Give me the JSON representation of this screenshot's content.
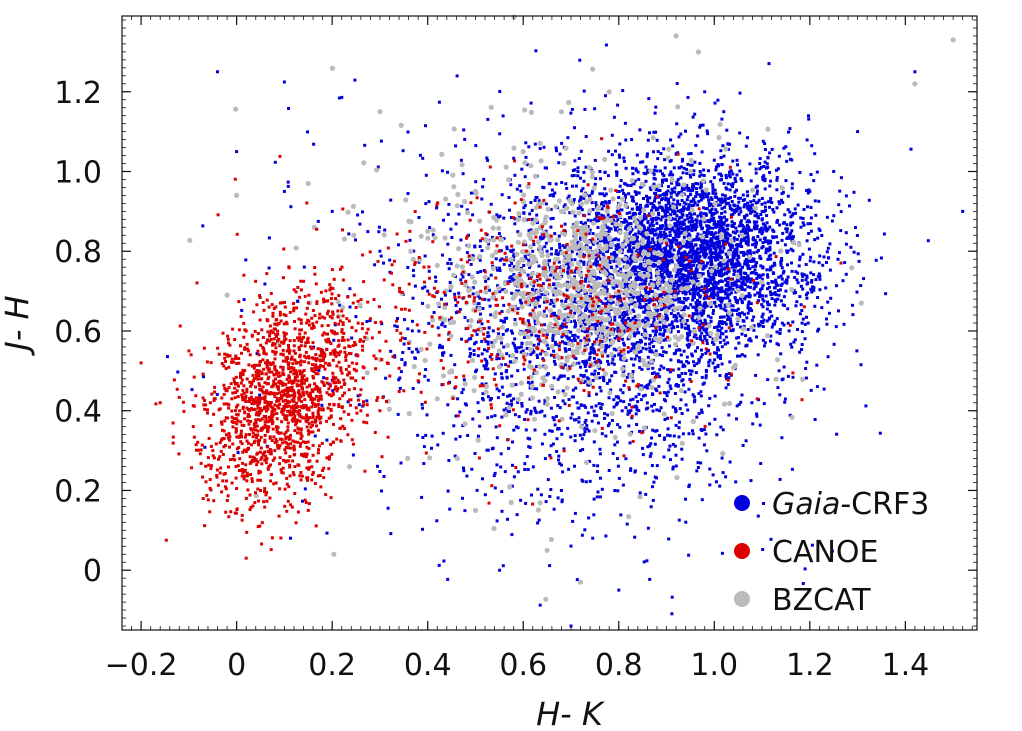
{
  "chart_data": {
    "type": "scatter",
    "title": "",
    "xlabel": "H- K",
    "ylabel": "J- H",
    "xlim": [
      -0.24,
      1.55
    ],
    "ylim": [
      -0.15,
      1.39
    ],
    "x_ticks": [
      -0.2,
      0,
      0.2,
      0.4,
      0.6,
      0.8,
      1.0,
      1.2,
      1.4
    ],
    "x_tick_labels": [
      "−0.2",
      "0",
      "0.2",
      "0.4",
      "0.6",
      "0.8",
      "1.0",
      "1.2",
      "1.4"
    ],
    "y_ticks": [
      0,
      0.2,
      0.4,
      0.6,
      0.8,
      1.0,
      1.2
    ],
    "y_tick_labels": [
      "0",
      "0.2",
      "0.4",
      "0.6",
      "0.8",
      "1.0",
      "1.2"
    ],
    "legend_position": "bottom-right",
    "grid": false,
    "series": [
      {
        "name": "Gaia-CRF3",
        "name_italic": "Gaia",
        "name_rest": "-CRF3",
        "color": "#0000dd",
        "marker": "square",
        "distribution": "dense cloud centered near (0.95, 0.78) with broad spread",
        "points": [
          [
            0.95,
            0.8
          ],
          [
            1.0,
            0.82
          ],
          [
            1.05,
            0.75
          ],
          [
            0.9,
            0.72
          ],
          [
            0.85,
            0.85
          ],
          [
            1.1,
            0.9
          ],
          [
            0.8,
            0.7
          ],
          [
            0.7,
            0.65
          ],
          [
            0.75,
            0.88
          ],
          [
            1.15,
            0.7
          ],
          [
            0.6,
            0.55
          ],
          [
            0.65,
            0.8
          ],
          [
            1.2,
            0.95
          ],
          [
            0.55,
            0.45
          ],
          [
            0.5,
            0.6
          ],
          [
            0.45,
            0.5
          ],
          [
            1.25,
            1.0
          ],
          [
            0.4,
            0.7
          ],
          [
            0.88,
            0.35
          ],
          [
            0.92,
            0.4
          ],
          [
            0.72,
            0.3
          ],
          [
            0.68,
            0.2
          ],
          [
            0.78,
            0.25
          ],
          [
            1.3,
            1.1
          ],
          [
            1.02,
            1.15
          ],
          [
            0.98,
            1.2
          ],
          [
            0.3,
            0.8
          ],
          [
            0.2,
            0.9
          ],
          [
            0.1,
            0.95
          ],
          [
            0.0,
            1.05
          ],
          [
            -0.04,
            1.25
          ],
          [
            1.42,
            1.25
          ],
          [
            1.52,
            0.9
          ],
          [
            0.7,
            -0.14
          ],
          [
            0.8,
            -0.05
          ]
        ]
      },
      {
        "name": "CANOE",
        "color": "#dd0000",
        "marker": "square",
        "distribution": "cluster centered near (0.10, 0.42) plus sparse points among the blue cloud",
        "points": [
          [
            0.05,
            0.4
          ],
          [
            0.1,
            0.45
          ],
          [
            0.15,
            0.35
          ],
          [
            0.08,
            0.3
          ],
          [
            0.12,
            0.55
          ],
          [
            0.2,
            0.6
          ],
          [
            0.25,
            0.5
          ],
          [
            0.0,
            0.38
          ],
          [
            -0.02,
            0.45
          ],
          [
            0.18,
            0.25
          ],
          [
            0.22,
            0.65
          ],
          [
            0.3,
            0.55
          ],
          [
            -0.1,
            0.55
          ],
          [
            -0.2,
            0.52
          ],
          [
            0.05,
            0.2
          ],
          [
            0.15,
            0.15
          ],
          [
            0.3,
            0.4
          ],
          [
            0.35,
            0.45
          ],
          [
            0.02,
            0.6
          ],
          [
            -0.05,
            0.3
          ],
          [
            0.7,
            0.75
          ],
          [
            0.8,
            0.7
          ],
          [
            0.6,
            0.62
          ],
          [
            0.55,
            0.8
          ],
          [
            0.9,
            0.82
          ],
          [
            0.5,
            0.65
          ],
          [
            -0.16,
            0.42
          ],
          [
            0.02,
            0.03
          ]
        ]
      },
      {
        "name": "BZCAT",
        "color": "#bbbbbb",
        "marker": "circle",
        "distribution": "points concentrated near (0.75, 0.72) with wide scatter",
        "points": [
          [
            0.75,
            0.72
          ],
          [
            0.7,
            0.68
          ],
          [
            0.8,
            0.78
          ],
          [
            0.65,
            0.6
          ],
          [
            0.85,
            0.82
          ],
          [
            0.6,
            0.75
          ],
          [
            0.72,
            0.85
          ],
          [
            0.78,
            0.6
          ],
          [
            0.68,
            0.9
          ],
          [
            0.9,
            0.65
          ],
          [
            0.55,
            0.55
          ],
          [
            0.95,
            1.0
          ],
          [
            0.6,
            1.05
          ],
          [
            0.5,
            0.95
          ],
          [
            0.4,
            0.85
          ],
          [
            0.3,
            1.15
          ],
          [
            0.0,
            0.94
          ],
          [
            0.15,
            0.97
          ],
          [
            0.92,
            1.34
          ],
          [
            1.5,
            1.33
          ],
          [
            1.42,
            1.22
          ],
          [
            0.72,
            -0.03
          ],
          [
            0.65,
            0.05
          ],
          [
            0.5,
            0.15
          ],
          [
            0.45,
            0.5
          ],
          [
            0.42,
            0.43
          ],
          [
            0.75,
            0.35
          ],
          [
            0.78,
            1.2
          ],
          [
            0.68,
            1.15
          ],
          [
            -0.02,
            0.69
          ]
        ]
      }
    ]
  }
}
